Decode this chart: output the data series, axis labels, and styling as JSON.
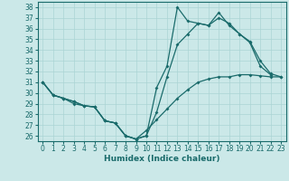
{
  "xlabel": "Humidex (Indice chaleur)",
  "bg_color": "#cbe8e8",
  "line_color": "#1a6b6b",
  "grid_color": "#aad4d4",
  "xlim": [
    -0.5,
    23.5
  ],
  "ylim": [
    25.5,
    38.5
  ],
  "yticks": [
    26,
    27,
    28,
    29,
    30,
    31,
    32,
    33,
    34,
    35,
    36,
    37,
    38
  ],
  "xticks": [
    0,
    1,
    2,
    3,
    4,
    5,
    6,
    7,
    8,
    9,
    10,
    11,
    12,
    13,
    14,
    15,
    16,
    17,
    18,
    19,
    20,
    21,
    22,
    23
  ],
  "line1_x": [
    0,
    1,
    2,
    3,
    4,
    5,
    6,
    7,
    8,
    9,
    10,
    11,
    12,
    13,
    14,
    15,
    16,
    17,
    18,
    19,
    20,
    21,
    22
  ],
  "line1_y": [
    31,
    29.8,
    29.5,
    29.0,
    28.8,
    28.7,
    27.4,
    27.2,
    26.0,
    25.7,
    26.0,
    28.2,
    31.5,
    34.5,
    35.5,
    36.5,
    36.3,
    37.0,
    36.5,
    35.5,
    34.7,
    32.5,
    31.7
  ],
  "line2_x": [
    0,
    1,
    2,
    3,
    4,
    5,
    6,
    7,
    8,
    9,
    10,
    11,
    12,
    13,
    14,
    15,
    16,
    17,
    18,
    19,
    20,
    21,
    22,
    23
  ],
  "line2_y": [
    31,
    29.8,
    29.5,
    29.2,
    28.8,
    28.7,
    27.4,
    27.2,
    26.0,
    25.7,
    26.0,
    30.5,
    32.5,
    38.0,
    36.7,
    36.5,
    36.3,
    37.5,
    36.3,
    35.5,
    34.8,
    33.0,
    31.8,
    31.5
  ],
  "line3_x": [
    0,
    1,
    2,
    3,
    4,
    5,
    6,
    7,
    8,
    9,
    10,
    11,
    12,
    13,
    14,
    15,
    16,
    17,
    18,
    19,
    20,
    21,
    22,
    23
  ],
  "line3_y": [
    31,
    29.8,
    29.5,
    29.2,
    28.8,
    28.7,
    27.4,
    27.2,
    26.0,
    25.7,
    26.5,
    27.5,
    28.5,
    29.5,
    30.3,
    31.0,
    31.3,
    31.5,
    31.5,
    31.7,
    31.7,
    31.6,
    31.5,
    31.5
  ],
  "tick_fontsize": 5.5,
  "xlabel_fontsize": 6.5
}
